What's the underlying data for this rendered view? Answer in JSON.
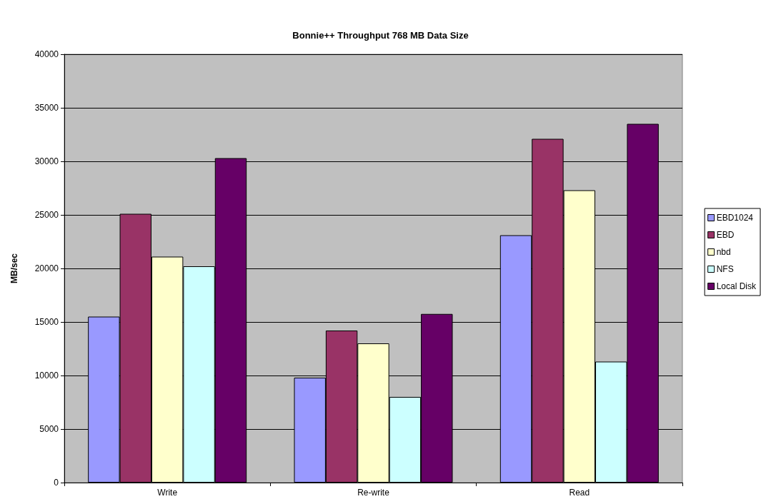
{
  "chart_data": {
    "type": "bar",
    "title": "Bonnie++ Throughput 768 MB Data Size",
    "ylabel": "MB/sec",
    "categories": [
      "Write",
      "Re-write",
      "Read"
    ],
    "series": [
      {
        "name": "EBD1024",
        "color": "#9999ff",
        "values": [
          15500,
          9800,
          23100
        ]
      },
      {
        "name": "EBD",
        "color": "#993366",
        "values": [
          25100,
          14200,
          32100
        ]
      },
      {
        "name": "nbd",
        "color": "#ffffcc",
        "values": [
          21100,
          13000,
          27300
        ]
      },
      {
        "name": "NFS",
        "color": "#ccffff",
        "values": [
          20200,
          8000,
          11300
        ]
      },
      {
        "name": "Local Disk",
        "color": "#660066",
        "values": [
          30300,
          15750,
          33500
        ]
      }
    ],
    "ylim": [
      0,
      40000
    ],
    "yticks": [
      0,
      5000,
      10000,
      15000,
      20000,
      25000,
      30000,
      35000,
      40000
    ],
    "grid": "y",
    "legend": "right"
  }
}
